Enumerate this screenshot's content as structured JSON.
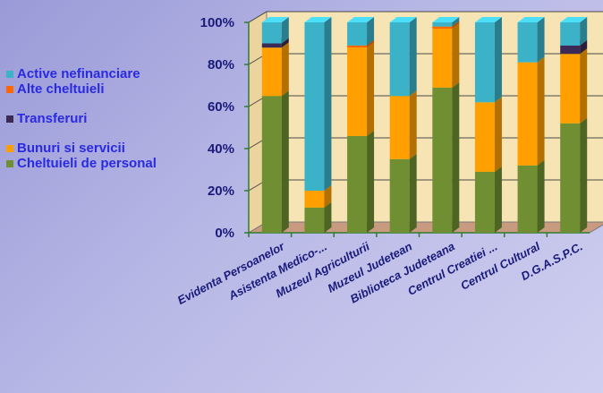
{
  "chart_data": {
    "type": "bar",
    "stacked": true,
    "percent": true,
    "three_d": true,
    "categories": [
      "Evidenta Persoanelor",
      "Asistenta Medico-...",
      "Muzeul Agriculturii",
      "Muzeul Judetean",
      "Biblioteca Judeteana",
      "Centrul Creatiei ...",
      "Centrul Cultural",
      "D.G.A.S.P.C."
    ],
    "series": [
      {
        "name": "Cheltuieli de personal",
        "color": "#6f8f32",
        "values": [
          65,
          12,
          46,
          35,
          69,
          29,
          32,
          52
        ]
      },
      {
        "name": "Bunuri si servicii",
        "color": "#ff9f00",
        "values": [
          23,
          8,
          42,
          30,
          28,
          33,
          49,
          33
        ]
      },
      {
        "name": "Transferuri",
        "color": "#3a2a55",
        "values": [
          2,
          0,
          0,
          0,
          0,
          0,
          0,
          4
        ]
      },
      {
        "name": "Alte cheltuieli",
        "color": "#ff6600",
        "values": [
          0,
          0,
          1,
          0,
          1,
          0,
          0,
          0
        ]
      },
      {
        "name": "Active nefinanciare",
        "color": "#3cb2c8",
        "values": [
          10,
          80,
          11,
          35,
          2,
          38,
          19,
          11
        ]
      }
    ],
    "y_ticks": [
      "0%",
      "20%",
      "40%",
      "60%",
      "80%",
      "100%"
    ],
    "ylim": [
      0,
      100
    ],
    "grid": true,
    "legend_position": "left"
  },
  "legend": [
    {
      "label": "Active nefinanciare",
      "color": "#3cb2c8"
    },
    {
      "label": "Alte cheltuieli",
      "color": "#ff6600"
    },
    {
      "label": "Transferuri",
      "color": "#3a2a55"
    },
    {
      "label": "Bunuri si servicii",
      "color": "#ff9f00"
    },
    {
      "label": "Cheltuieli de personal",
      "color": "#6f8f32"
    }
  ]
}
